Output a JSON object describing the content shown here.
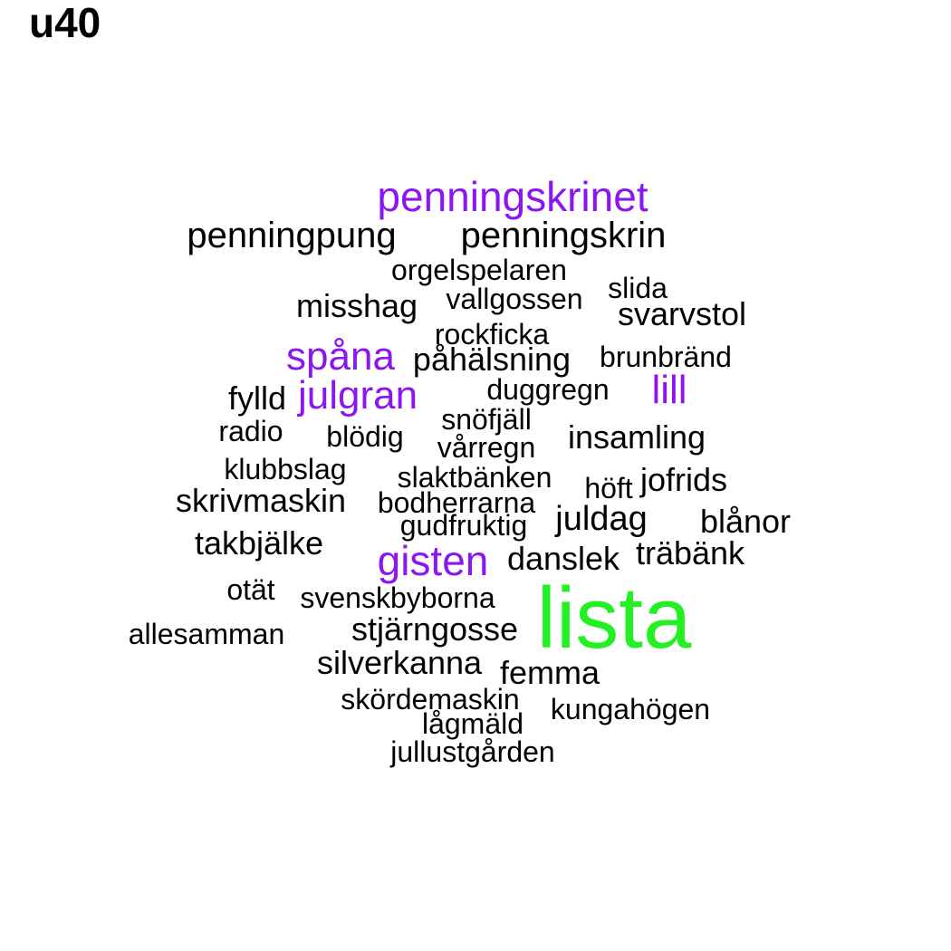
{
  "title": "u40",
  "colors": {
    "default": "#000000",
    "purple": "#8b16f0",
    "green": "#22f022"
  },
  "words": [
    {
      "text": "penningskrinet",
      "color": "purple"
    },
    {
      "text": "penningpung",
      "color": "default"
    },
    {
      "text": "penningskrin",
      "color": "default"
    },
    {
      "text": "orgelspelaren",
      "color": "default"
    },
    {
      "text": "slida",
      "color": "default"
    },
    {
      "text": "vallgossen",
      "color": "default"
    },
    {
      "text": "misshag",
      "color": "default"
    },
    {
      "text": "svarvstol",
      "color": "default"
    },
    {
      "text": "rockficka",
      "color": "default"
    },
    {
      "text": "spåna",
      "color": "purple"
    },
    {
      "text": "påhälsning",
      "color": "default"
    },
    {
      "text": "brunbränd",
      "color": "default"
    },
    {
      "text": "lill",
      "color": "purple"
    },
    {
      "text": "fylld",
      "color": "default"
    },
    {
      "text": "julgran",
      "color": "purple"
    },
    {
      "text": "duggregn",
      "color": "default"
    },
    {
      "text": "snöfjäll",
      "color": "default"
    },
    {
      "text": "radio",
      "color": "default"
    },
    {
      "text": "blödig",
      "color": "default"
    },
    {
      "text": "insamling",
      "color": "default"
    },
    {
      "text": "vårregn",
      "color": "default"
    },
    {
      "text": "klubbslag",
      "color": "default"
    },
    {
      "text": "slaktbänken",
      "color": "default"
    },
    {
      "text": "jofrids",
      "color": "default"
    },
    {
      "text": "höft",
      "color": "default"
    },
    {
      "text": "skrivmaskin",
      "color": "default"
    },
    {
      "text": "bodherrarna",
      "color": "default"
    },
    {
      "text": "juldag",
      "color": "default"
    },
    {
      "text": "blånor",
      "color": "default"
    },
    {
      "text": "gudfruktig",
      "color": "default"
    },
    {
      "text": "takbjälke",
      "color": "default"
    },
    {
      "text": "gisten",
      "color": "purple"
    },
    {
      "text": "danslek",
      "color": "default"
    },
    {
      "text": "träbänk",
      "color": "default"
    },
    {
      "text": "otät",
      "color": "default"
    },
    {
      "text": "svenskbyborna",
      "color": "default"
    },
    {
      "text": "lista",
      "color": "green"
    },
    {
      "text": "allesamman",
      "color": "default"
    },
    {
      "text": "stjärngosse",
      "color": "default"
    },
    {
      "text": "silverkanna",
      "color": "default"
    },
    {
      "text": "femma",
      "color": "default"
    },
    {
      "text": "skördemaskin",
      "color": "default"
    },
    {
      "text": "kungahögen",
      "color": "default"
    },
    {
      "text": "lågmäld",
      "color": "default"
    },
    {
      "text": "jullustgården",
      "color": "default"
    }
  ]
}
